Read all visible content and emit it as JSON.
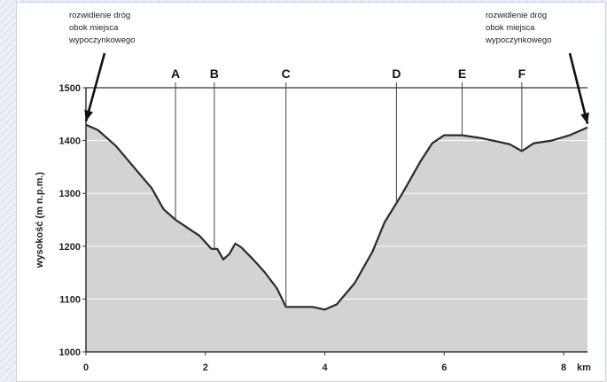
{
  "chart_data": {
    "type": "area",
    "ylabel": "wysokość (m n.p.m.)",
    "xunit": "km",
    "xlim": [
      0,
      8.4
    ],
    "ylim": [
      1000,
      1500
    ],
    "yticks": [
      1000,
      1100,
      1200,
      1300,
      1400,
      1500
    ],
    "xticks": [
      0,
      2,
      4,
      6,
      8
    ],
    "grid": true,
    "x": [
      0,
      0.2,
      0.5,
      0.8,
      1.1,
      1.3,
      1.5,
      1.7,
      1.9,
      2.1,
      2.2,
      2.3,
      2.4,
      2.5,
      2.6,
      2.8,
      3.0,
      3.2,
      3.35,
      3.6,
      3.8,
      4.0,
      4.2,
      4.5,
      4.8,
      5.0,
      5.3,
      5.6,
      5.8,
      6.0,
      6.3,
      6.6,
      6.9,
      7.1,
      7.3,
      7.5,
      7.8,
      8.1,
      8.4
    ],
    "y": [
      1430,
      1420,
      1390,
      1350,
      1310,
      1270,
      1250,
      1235,
      1220,
      1195,
      1195,
      1175,
      1185,
      1205,
      1198,
      1175,
      1150,
      1120,
      1085,
      1085,
      1085,
      1080,
      1090,
      1130,
      1190,
      1245,
      1300,
      1360,
      1395,
      1410,
      1410,
      1405,
      1398,
      1393,
      1380,
      1395,
      1400,
      1410,
      1425
    ],
    "markers": [
      {
        "label": "A",
        "x": 1.5,
        "y": 1250
      },
      {
        "label": "B",
        "x": 2.15,
        "y": 1195
      },
      {
        "label": "C",
        "x": 3.35,
        "y": 1085
      },
      {
        "label": "D",
        "x": 5.2,
        "y": 1280
      },
      {
        "label": "E",
        "x": 6.3,
        "y": 1410
      },
      {
        "label": "F",
        "x": 7.3,
        "y": 1380
      }
    ],
    "annotations": [
      {
        "lines": [
          "rozwidlenie dróg",
          "obok miejsca",
          "wypoczynkowego"
        ],
        "x": 0,
        "y": 1430,
        "side": "left"
      },
      {
        "lines": [
          "rozwidlenie dróg",
          "obok miejsca",
          "wypoczynkowego"
        ],
        "x": 8.4,
        "y": 1425,
        "side": "right"
      }
    ],
    "colors": {
      "fill": "#d3d3d3",
      "line": "#2a2a2a",
      "grid": "#ffffff",
      "frame": "#333333"
    }
  }
}
